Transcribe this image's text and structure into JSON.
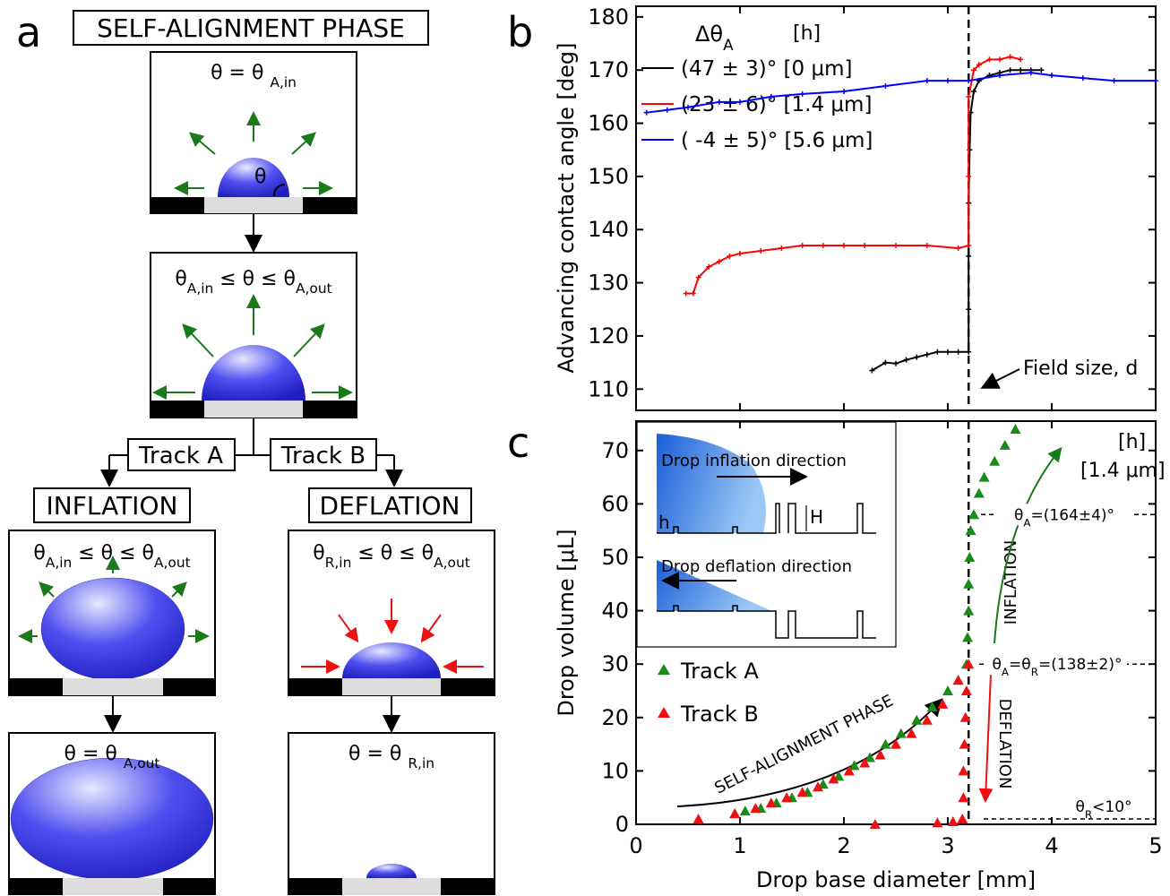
{
  "figure_a": {
    "panel_label": "a",
    "title": "SELF-ALIGNMENT PHASE",
    "stage_1": [
      "θ = θ ",
      "A,in"
    ],
    "drop_angle": "θ",
    "stage_2": [
      "θ",
      "A,in",
      " ≤ θ ≤ θ",
      "A,out"
    ],
    "track_a": "Track A",
    "track_b": "Track B",
    "inflation": "INFLATION",
    "deflation": "DEFLATION",
    "inflation_stage": [
      "θ",
      "A,in",
      " ≤ θ ≤ θ",
      "A,out"
    ],
    "deflation_stage": [
      "θ",
      "R,in",
      " ≤ θ ≤ θ",
      "A,out"
    ],
    "inflation_end": [
      "θ = θ ",
      "A,out"
    ],
    "deflation_end": [
      "θ = θ ",
      "R,in"
    ]
  },
  "chart_data": [
    {
      "type": "line",
      "panel_label": "b",
      "y_label": "Advancing contact angle [deg]",
      "legend_title": [
        "Δθ",
        "A"
      ],
      "legend_unit": "[h]",
      "xlim": [
        0,
        5
      ],
      "xticks": [
        0,
        1,
        2,
        3,
        4,
        5
      ],
      "show_xtick_labels": false,
      "ylim": [
        106,
        182
      ],
      "yticks": [
        110,
        120,
        130,
        140,
        150,
        160,
        170,
        180
      ],
      "vline_x": 3.2,
      "annotation": "Field size, d",
      "series": [
        {
          "name": "(47 ± 3)° [0 μm]",
          "color": "#000000",
          "x": [
            2.27,
            2.4,
            2.5,
            2.6,
            2.7,
            2.8,
            2.9,
            3.0,
            3.1,
            3.2,
            3.2,
            3.2,
            3.2,
            3.21,
            3.22,
            3.25,
            3.3,
            3.4,
            3.5,
            3.6,
            3.7,
            3.8,
            3.9
          ],
          "values": [
            113.5,
            115,
            114.8,
            115.5,
            116,
            116.5,
            117,
            117,
            117,
            117,
            125,
            135,
            145,
            155,
            162,
            166,
            168,
            169,
            169.5,
            170,
            170,
            170,
            170
          ]
        },
        {
          "name": "(23 ± 6)° [1.4 μm]",
          "color": "#ff0000",
          "x": [
            0.48,
            0.55,
            0.6,
            0.7,
            0.8,
            0.9,
            1.0,
            1.2,
            1.4,
            1.6,
            1.8,
            2.0,
            2.2,
            2.5,
            2.8,
            3.1,
            3.2,
            3.2,
            3.2,
            3.25,
            3.3,
            3.4,
            3.5,
            3.6,
            3.7
          ],
          "values": [
            128,
            128,
            131,
            133,
            134,
            135,
            135.5,
            136,
            136.5,
            137,
            137,
            137,
            137,
            137,
            137,
            136.5,
            137,
            150,
            165,
            170,
            171,
            172,
            172,
            172.5,
            172
          ]
        },
        {
          "name": "( -4 ± 5)° [5.6 μm]",
          "color": "#0000ff",
          "x": [
            0.1,
            0.3,
            0.5,
            0.8,
            1.0,
            1.3,
            1.6,
            2.0,
            2.4,
            2.8,
            3.0,
            3.2,
            3.5,
            3.8,
            4.0,
            4.3,
            4.6,
            5.0
          ],
          "values": [
            162,
            162.5,
            163,
            164,
            164,
            165,
            165.5,
            166,
            167,
            168,
            168,
            168,
            169,
            169.5,
            169,
            168.5,
            168,
            168
          ]
        }
      ]
    },
    {
      "type": "scatter",
      "panel_label": "c",
      "x_label": "Drop base diameter [mm]",
      "y_label": "Drop volume [μL]",
      "xlim": [
        0,
        5
      ],
      "xticks": [
        0,
        1,
        2,
        3,
        4,
        5
      ],
      "ylim": [
        0,
        75.5
      ],
      "yticks": [
        0,
        10,
        20,
        30,
        40,
        50,
        60,
        70
      ],
      "vline_x": 3.2,
      "series": [
        {
          "name": "Track A",
          "color": "#1a8a1a",
          "x": [
            0.95,
            1.05,
            1.2,
            1.35,
            1.5,
            1.65,
            1.8,
            1.95,
            2.1,
            2.25,
            2.4,
            2.55,
            2.7,
            2.85,
            3.0,
            3.1,
            3.18,
            3.19,
            3.2,
            3.2,
            3.21,
            3.22,
            3.25,
            3.3,
            3.35,
            3.45,
            3.55,
            3.65
          ],
          "values": [
            2,
            2.5,
            3,
            4,
            5,
            6,
            7.5,
            9,
            11,
            12.5,
            15,
            17,
            19.5,
            22,
            25,
            27,
            30,
            35,
            40,
            45,
            50,
            55,
            58,
            62,
            65,
            68,
            71,
            74
          ]
        },
        {
          "name": "Track B",
          "color": "#ee1111",
          "x": [
            0.6,
            0.95,
            1.15,
            1.3,
            1.45,
            1.6,
            1.75,
            1.9,
            2.05,
            2.2,
            2.35,
            2.5,
            2.65,
            2.8,
            2.95,
            3.1,
            3.2,
            3.18,
            3.17,
            3.16,
            3.15,
            3.15,
            3.14,
            2.3,
            2.9,
            3.05
          ],
          "values": [
            1,
            2,
            3,
            4,
            5,
            6,
            7,
            8.5,
            10,
            11.5,
            13,
            15,
            17,
            19.5,
            22.5,
            27,
            30,
            25,
            20,
            15,
            10,
            5,
            1,
            0,
            0.3,
            0.5
          ]
        }
      ],
      "annotations": {
        "h_label": "[h]",
        "h_value": "[1.4 μm]",
        "inflation_angle": {
          "parts": [
            "θ",
            "A",
            "=(164±4)°"
          ],
          "y": 58
        },
        "pinned_angle": {
          "parts": [
            "θ",
            "A",
            "=θ",
            "R",
            "=(138±2)°"
          ],
          "y": 30
        },
        "receding_angle": {
          "parts": [
            "θ",
            "R",
            "<10°"
          ],
          "y": 1
        },
        "inflation": "INFLATION",
        "deflation": "DEFLATION",
        "self_alignment": "SELF-ALIGNMENT PHASE",
        "inset_inflation": "Drop inflation direction",
        "inset_deflation": "Drop deflation direction",
        "inset_h": "h",
        "inset_H": "H"
      }
    }
  ]
}
